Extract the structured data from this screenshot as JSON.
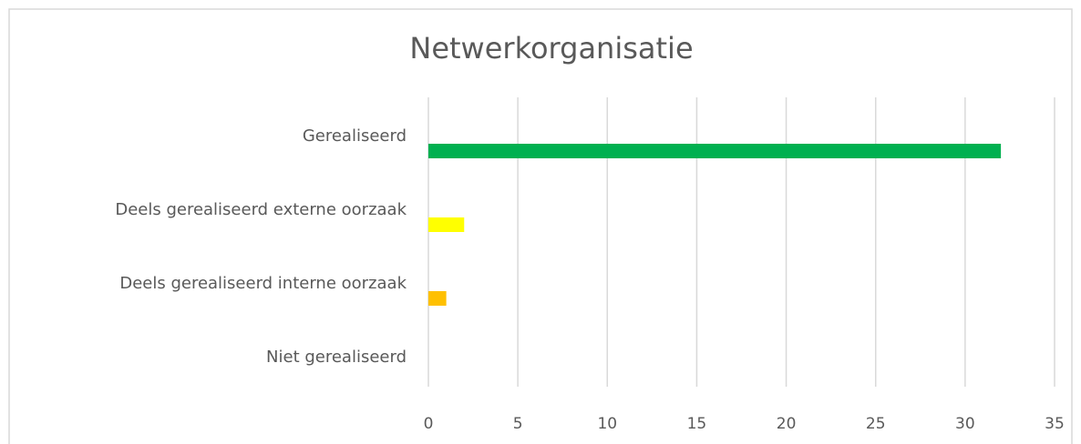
{
  "chart_data": {
    "type": "barh",
    "title": "Netwerkorganisatie",
    "categories": [
      "Gerealiseerd",
      "Deels gerealiseerd externe oorzaak",
      "Deels gerealiseerd interne oorzaak",
      "Niet gerealiseerd"
    ],
    "values": [
      32,
      2,
      1,
      0
    ],
    "colors": [
      "#00b050",
      "#ffff00",
      "#ffc000",
      "#ff0000"
    ],
    "xlim": [
      0,
      35
    ],
    "xticks": [
      0,
      5,
      10,
      15,
      20,
      25,
      30,
      35
    ],
    "grid": true
  }
}
